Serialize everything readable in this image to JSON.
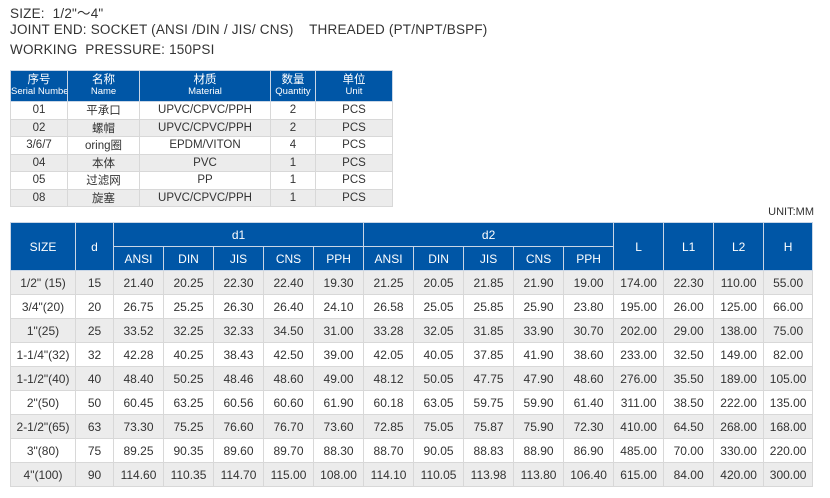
{
  "specs": {
    "size": "SIZE:  1/2\"～4\"",
    "joint_end": "JOINT END: SOCKET (ANSI /DIN / JIS/ CNS)    THREADED (PT/NPT/BSPF)",
    "working_pressure": "WORKING  PRESSURE: 150PSI"
  },
  "parts_table": {
    "headers": [
      {
        "zh": "序号",
        "en": "Serial Number"
      },
      {
        "zh": "名称",
        "en": "Name"
      },
      {
        "zh": "材质",
        "en": "Material"
      },
      {
        "zh": "数量",
        "en": "Quantity"
      },
      {
        "zh": "单位",
        "en": "Unit"
      }
    ],
    "rows": [
      [
        "01",
        "平承口",
        "UPVC/CPVC/PPH",
        "2",
        "PCS"
      ],
      [
        "02",
        "螺帽",
        "UPVC/CPVC/PPH",
        "2",
        "PCS"
      ],
      [
        "3/6/7",
        "oring圈",
        "EPDM/VITON",
        "4",
        "PCS"
      ],
      [
        "04",
        "本体",
        "PVC",
        "1",
        "PCS"
      ],
      [
        "05",
        "过滤网",
        "PP",
        "1",
        "PCS"
      ],
      [
        "08",
        "旋塞",
        "UPVC/CPVC/PPH",
        "1",
        "PCS"
      ]
    ]
  },
  "unit_label": "UNIT:MM",
  "dimension_table": {
    "headers": {
      "size": "SIZE",
      "d": "d",
      "d1": "d1",
      "d2": "d2",
      "sub": [
        "ANSI",
        "DIN",
        "JIS",
        "CNS",
        "PPH"
      ],
      "L": "L",
      "L1": "L1",
      "L2": "L2",
      "H": "H"
    },
    "rows": [
      [
        "1/2\" (15)",
        "15",
        "21.40",
        "20.25",
        "22.30",
        "22.40",
        "19.30",
        "21.25",
        "20.05",
        "21.85",
        "21.90",
        "19.00",
        "174.00",
        "22.30",
        "110.00",
        "55.00"
      ],
      [
        "3/4\"(20)",
        "20",
        "26.75",
        "25.25",
        "26.30",
        "26.40",
        "24.10",
        "26.58",
        "25.05",
        "25.85",
        "25.90",
        "23.80",
        "195.00",
        "26.00",
        "125.00",
        "66.00"
      ],
      [
        "1\"(25)",
        "25",
        "33.52",
        "32.25",
        "32.33",
        "34.50",
        "31.00",
        "33.28",
        "32.05",
        "31.85",
        "33.90",
        "30.70",
        "202.00",
        "29.00",
        "138.00",
        "75.00"
      ],
      [
        "1-1/4\"(32)",
        "32",
        "42.28",
        "40.25",
        "38.43",
        "42.50",
        "39.00",
        "42.05",
        "40.05",
        "37.85",
        "41.90",
        "38.60",
        "233.00",
        "32.50",
        "149.00",
        "82.00"
      ],
      [
        "1-1/2\"(40)",
        "40",
        "48.40",
        "50.25",
        "48.46",
        "48.60",
        "49.00",
        "48.12",
        "50.05",
        "47.75",
        "47.90",
        "48.60",
        "276.00",
        "35.50",
        "189.00",
        "105.00"
      ],
      [
        "2\"(50)",
        "50",
        "60.45",
        "63.25",
        "60.56",
        "60.60",
        "61.90",
        "60.18",
        "63.05",
        "59.75",
        "59.90",
        "61.40",
        "311.00",
        "38.50",
        "222.00",
        "135.00"
      ],
      [
        "2-1/2\"(65)",
        "63",
        "73.30",
        "75.25",
        "76.60",
        "76.70",
        "73.60",
        "72.85",
        "75.05",
        "75.87",
        "75.90",
        "72.30",
        "410.00",
        "64.50",
        "268.00",
        "168.00"
      ],
      [
        "3\"(80)",
        "75",
        "89.25",
        "90.35",
        "89.60",
        "89.70",
        "88.30",
        "88.70",
        "90.05",
        "88.83",
        "88.90",
        "86.90",
        "485.00",
        "70.00",
        "330.00",
        "220.00"
      ],
      [
        "4\"(100)",
        "90",
        "114.60",
        "110.35",
        "114.70",
        "115.00",
        "108.00",
        "114.10",
        "110.05",
        "113.98",
        "113.80",
        "106.40",
        "615.00",
        "84.00",
        "420.00",
        "300.00"
      ]
    ]
  },
  "colors": {
    "header_bg": "#0056a6",
    "alt_row_bg": "#ececec"
  }
}
